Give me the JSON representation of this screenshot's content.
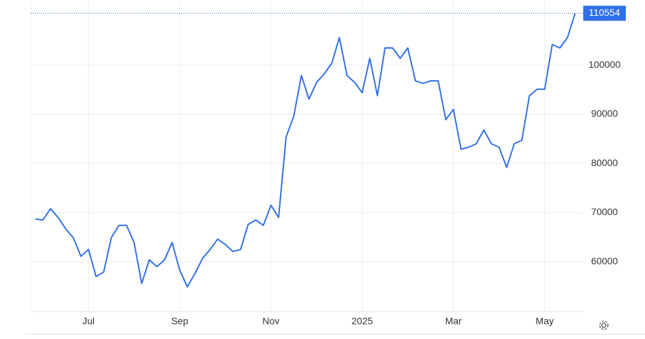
{
  "chart_data": {
    "type": "line",
    "categories": [
      null,
      null,
      null,
      null,
      null,
      null,
      null,
      "Jul",
      null,
      null,
      null,
      null,
      null,
      null,
      null,
      null,
      null,
      null,
      null,
      "Sep",
      null,
      null,
      null,
      null,
      null,
      null,
      null,
      null,
      null,
      null,
      null,
      "Nov",
      null,
      null,
      null,
      null,
      null,
      null,
      null,
      null,
      null,
      null,
      null,
      "2025",
      null,
      null,
      null,
      null,
      null,
      null,
      null,
      null,
      null,
      null,
      null,
      "Mar",
      null,
      null,
      null,
      null,
      null,
      null,
      null,
      null,
      null,
      null,
      null,
      "May",
      null,
      null,
      null,
      null
    ],
    "values": [
      68700,
      68500,
      70800,
      69000,
      66700,
      64900,
      61100,
      62500,
      57000,
      57900,
      64900,
      67400,
      67400,
      63900,
      55600,
      60400,
      59000,
      60400,
      63900,
      58300,
      54900,
      57600,
      60700,
      62500,
      64600,
      63500,
      62100,
      62500,
      67600,
      68500,
      67400,
      71500,
      69000,
      85400,
      89600,
      97900,
      93100,
      96500,
      98200,
      100400,
      105600,
      97900,
      96500,
      94400,
      101400,
      93800,
      103500,
      103500,
      101400,
      103500,
      96800,
      96300,
      96800,
      96800,
      88900,
      91000,
      82900,
      83300,
      84000,
      86800,
      84000,
      83300,
      79200,
      84000,
      84700,
      93800,
      95100,
      95100,
      104200,
      103500,
      105600,
      110554
    ],
    "color": "#2f6fe8",
    "ylim": [
      50000,
      112000
    ],
    "yticks": [
      60000,
      70000,
      80000,
      90000,
      100000
    ],
    "grid": true
  }
}
